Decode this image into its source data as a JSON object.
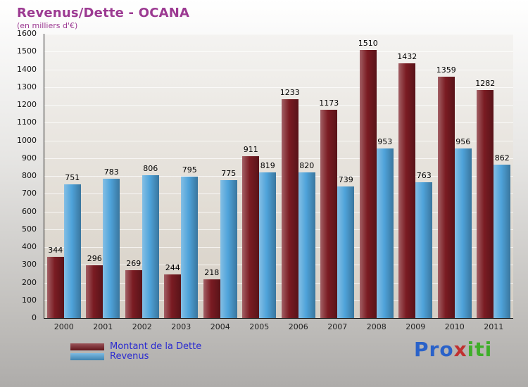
{
  "title": "Revenus/Dette - OCANA",
  "subtitle": "(en milliers d'€)",
  "legend": {
    "text_color": "#2a2ad0",
    "items": [
      {
        "label": "Montant de la Dette",
        "color": "#7a1b22"
      },
      {
        "label": "Revenus",
        "color": "#4fa3da"
      }
    ]
  },
  "logo": {
    "text": "Proxiti",
    "letters": [
      {
        "ch": "P",
        "color": "#2a62c9"
      },
      {
        "ch": "r",
        "color": "#2a62c9"
      },
      {
        "ch": "o",
        "color": "#2a62c9"
      },
      {
        "ch": "x",
        "color": "#c03030"
      },
      {
        "ch": "i",
        "color": "#3fae2a"
      },
      {
        "ch": "t",
        "color": "#3fae2a"
      },
      {
        "ch": "i",
        "color": "#3fae2a"
      }
    ]
  },
  "chart_data": {
    "type": "bar",
    "title": "Revenus/Dette - OCANA",
    "subtitle": "(en milliers d'€)",
    "categories": [
      "2000",
      "2001",
      "2002",
      "2003",
      "2004",
      "2005",
      "2006",
      "2007",
      "2008",
      "2009",
      "2010",
      "2011"
    ],
    "series": [
      {
        "name": "Montant de la Dette",
        "color": "#7a1b22",
        "values": [
          344,
          296,
          269,
          244,
          218,
          911,
          1233,
          1173,
          1510,
          1432,
          1359,
          1282
        ]
      },
      {
        "name": "Revenus",
        "color": "#4fa3da",
        "values": [
          751,
          783,
          806,
          795,
          775,
          819,
          820,
          739,
          953,
          763,
          956,
          862
        ]
      }
    ],
    "ylim": [
      0,
      1600
    ],
    "ytick_step": 100,
    "grid": true,
    "value_labels": true,
    "legend_position": "bottom-left",
    "xlabel": "",
    "ylabel": ""
  }
}
